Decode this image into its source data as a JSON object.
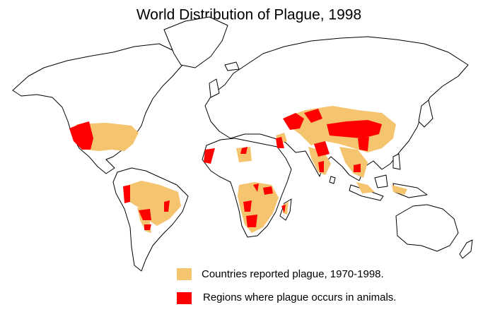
{
  "title": "World Distribution of Plague, 1998",
  "legend": [
    {
      "label": "Countries reported plague, 1970-1998.",
      "color": "#f5c46e"
    },
    {
      "label": "Regions where plague occurs in animals.",
      "color": "#ff0000"
    }
  ]
}
